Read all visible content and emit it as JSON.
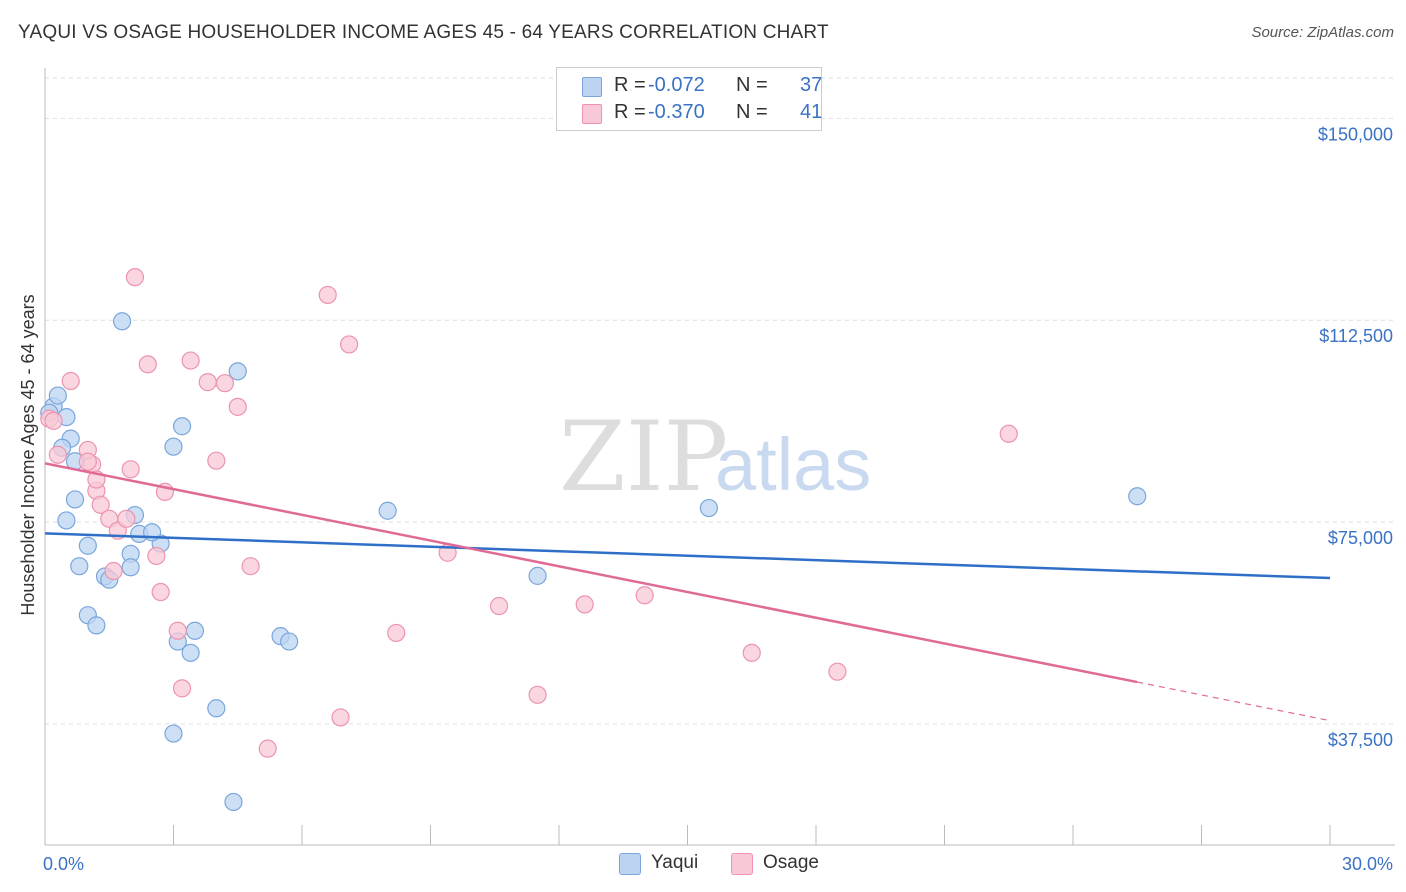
{
  "header": {
    "title": "YAQUI VS OSAGE HOUSEHOLDER INCOME AGES 45 - 64 YEARS CORRELATION CHART",
    "source": "Source: ZipAtlas.com"
  },
  "legend": {
    "r_label": "R =",
    "n_label": "N =",
    "items": [
      {
        "r": "-0.072",
        "n": "37"
      },
      {
        "r": "-0.370",
        "n": "41"
      }
    ]
  },
  "watermark": {
    "zip": "ZIP",
    "atlas": "atlas"
  },
  "colors": {
    "yaqui_fill": "#bcd4f2",
    "yaqui_stroke": "#7aa6dc",
    "yaqui_line": "#2f6fc8",
    "osage_fill": "#f8c8d6",
    "osage_stroke": "#ec94b0",
    "osage_line": "#e06a96",
    "grid": "#dddddd",
    "tick_label": "#3a72c4"
  },
  "chart_data": {
    "type": "scatter",
    "title": "YAQUI VS OSAGE HOUSEHOLDER INCOME AGES 45 - 64 YEARS CORRELATION CHART",
    "xlabel": "",
    "ylabel": "Householder Income Ages 45 - 64 years",
    "xlim": [
      0,
      30
    ],
    "ylim": [
      15000,
      157500
    ],
    "x_tick_labels": [
      "0.0%",
      "30.0%"
    ],
    "y_ticks": [
      37500,
      75000,
      112500,
      150000
    ],
    "y_tick_labels": [
      "$37,500",
      "$75,000",
      "$112,500",
      "$150,000"
    ],
    "grid": true,
    "series": [
      {
        "name": "Yaqui",
        "color": "#7aa6dc",
        "trend": {
          "x0": 0,
          "y0": 72900,
          "x1": 30,
          "y1": 64600,
          "dash_from": null
        },
        "points": [
          [
            0.2,
            96500
          ],
          [
            0.3,
            98500
          ],
          [
            0.5,
            94500
          ],
          [
            0.6,
            90500
          ],
          [
            0.4,
            88800
          ],
          [
            0.7,
            86300
          ],
          [
            1.8,
            112300
          ],
          [
            0.7,
            79200
          ],
          [
            0.5,
            75300
          ],
          [
            1.0,
            70600
          ],
          [
            0.8,
            66800
          ],
          [
            1.4,
            64900
          ],
          [
            1.5,
            64300
          ],
          [
            1.0,
            57700
          ],
          [
            1.2,
            55800
          ],
          [
            2.0,
            69100
          ],
          [
            2.1,
            76300
          ],
          [
            2.2,
            72800
          ],
          [
            2.0,
            66600
          ],
          [
            3.0,
            89000
          ],
          [
            3.2,
            92800
          ],
          [
            3.1,
            52800
          ],
          [
            3.5,
            54800
          ],
          [
            3.4,
            50700
          ],
          [
            2.7,
            71000
          ],
          [
            2.5,
            73100
          ],
          [
            4.5,
            103000
          ],
          [
            5.5,
            53800
          ],
          [
            5.7,
            52800
          ],
          [
            4.0,
            40400
          ],
          [
            3.0,
            35700
          ],
          [
            4.4,
            23000
          ],
          [
            8.0,
            77100
          ],
          [
            11.5,
            65000
          ],
          [
            15.5,
            77600
          ],
          [
            25.5,
            79800
          ],
          [
            0.1,
            95300
          ]
        ]
      },
      {
        "name": "Osage",
        "color": "#ec94b0",
        "trend": {
          "x0": 0,
          "y0": 85900,
          "x1": 30,
          "y1": 38100,
          "dash_from": 25.5
        },
        "points": [
          [
            0.1,
            94200
          ],
          [
            0.2,
            93800
          ],
          [
            0.6,
            101200
          ],
          [
            1.1,
            85700
          ],
          [
            1.0,
            88400
          ],
          [
            1.2,
            80800
          ],
          [
            1.3,
            78200
          ],
          [
            1.5,
            75600
          ],
          [
            1.7,
            73400
          ],
          [
            1.9,
            75600
          ],
          [
            2.0,
            84800
          ],
          [
            2.1,
            120500
          ],
          [
            2.4,
            104300
          ],
          [
            2.6,
            68700
          ],
          [
            2.7,
            62000
          ],
          [
            3.1,
            54800
          ],
          [
            3.2,
            44100
          ],
          [
            3.4,
            105000
          ],
          [
            3.8,
            101000
          ],
          [
            4.0,
            86400
          ],
          [
            4.2,
            100800
          ],
          [
            4.5,
            96400
          ],
          [
            4.8,
            66800
          ],
          [
            5.2,
            32900
          ],
          [
            6.6,
            117200
          ],
          [
            7.1,
            108000
          ],
          [
            6.9,
            38700
          ],
          [
            8.2,
            54400
          ],
          [
            9.4,
            69300
          ],
          [
            10.6,
            59400
          ],
          [
            11.5,
            42900
          ],
          [
            12.6,
            59700
          ],
          [
            14.0,
            61400
          ],
          [
            16.5,
            50700
          ],
          [
            18.5,
            47200
          ],
          [
            22.5,
            91400
          ],
          [
            0.3,
            87500
          ],
          [
            1.2,
            82900
          ],
          [
            1.6,
            65900
          ],
          [
            2.8,
            80600
          ],
          [
            1.0,
            86200
          ]
        ]
      }
    ]
  }
}
